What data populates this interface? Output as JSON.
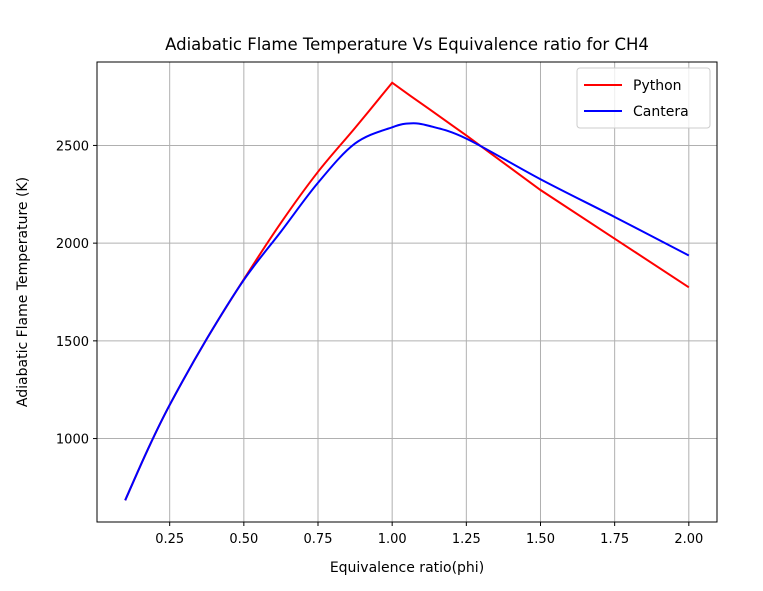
{
  "chart_data": {
    "type": "line",
    "title": "Adiabatic Flame Temperature Vs Equivalence ratio for CH4",
    "xlabel": "Equivalence ratio(phi)",
    "ylabel": "Adiabatic Flame Temperature (K)",
    "xlim": [
      0.005,
      2.095
    ],
    "ylim": [
      573,
      2927
    ],
    "xticks": [
      0.25,
      0.5,
      0.75,
      1.0,
      1.25,
      1.5,
      1.75,
      2.0
    ],
    "xtick_labels": [
      "0.25",
      "0.50",
      "0.75",
      "1.00",
      "1.25",
      "1.50",
      "1.75",
      "2.00"
    ],
    "yticks": [
      1000,
      1500,
      2000,
      2500
    ],
    "ytick_labels": [
      "1000",
      "1500",
      "2000",
      "2500"
    ],
    "grid": true,
    "legend_position": "top-right",
    "x": [
      0.1,
      0.175,
      0.25,
      0.375,
      0.5,
      0.625,
      0.75,
      0.875,
      1.0,
      1.0625,
      1.125,
      1.25,
      1.5,
      1.75,
      2.0
    ],
    "series": [
      {
        "name": "Python",
        "color": "#ff0000",
        "values": [
          684,
          940,
          1172,
          1510,
          1815,
          2104,
          2365,
          2590,
          2821,
          2753,
          2686,
          2551,
          2272,
          2023,
          1774
        ]
      },
      {
        "name": "Cantera",
        "color": "#0000ff",
        "values": [
          684,
          940,
          1172,
          1510,
          1812,
          2059,
          2309,
          2510,
          2593,
          2613,
          2600,
          2535,
          2327,
          2134,
          1937
        ]
      }
    ]
  }
}
